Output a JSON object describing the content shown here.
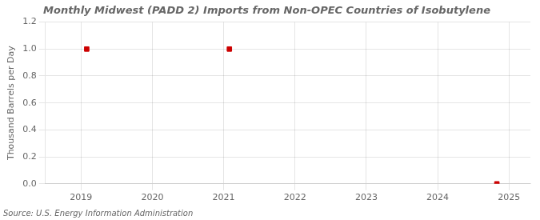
{
  "chart_data": {
    "type": "scatter",
    "title": "Monthly Midwest (PADD 2) Imports from Non-OPEC Countries of Isobutylene",
    "ylabel": "Thousand Barrels per Day",
    "source": "Source: U.S. Energy Information Administration",
    "x": [
      2019.08,
      2021.08,
      2024.83
    ],
    "values": [
      1.0,
      1.0,
      0.0
    ],
    "color": "#cc0000",
    "marker": "square",
    "xlim": [
      2018.5,
      2025.3
    ],
    "xticks": [
      2019,
      2020,
      2021,
      2022,
      2023,
      2024,
      2025
    ],
    "ylim": [
      0.0,
      1.2
    ],
    "yticks": [
      {
        "value": 0.0,
        "label": "0.0"
      },
      0.2,
      0.4,
      0.6,
      0.8,
      {
        "value": 1.0,
        "label": "1.0"
      },
      1.2
    ],
    "grid": true
  }
}
